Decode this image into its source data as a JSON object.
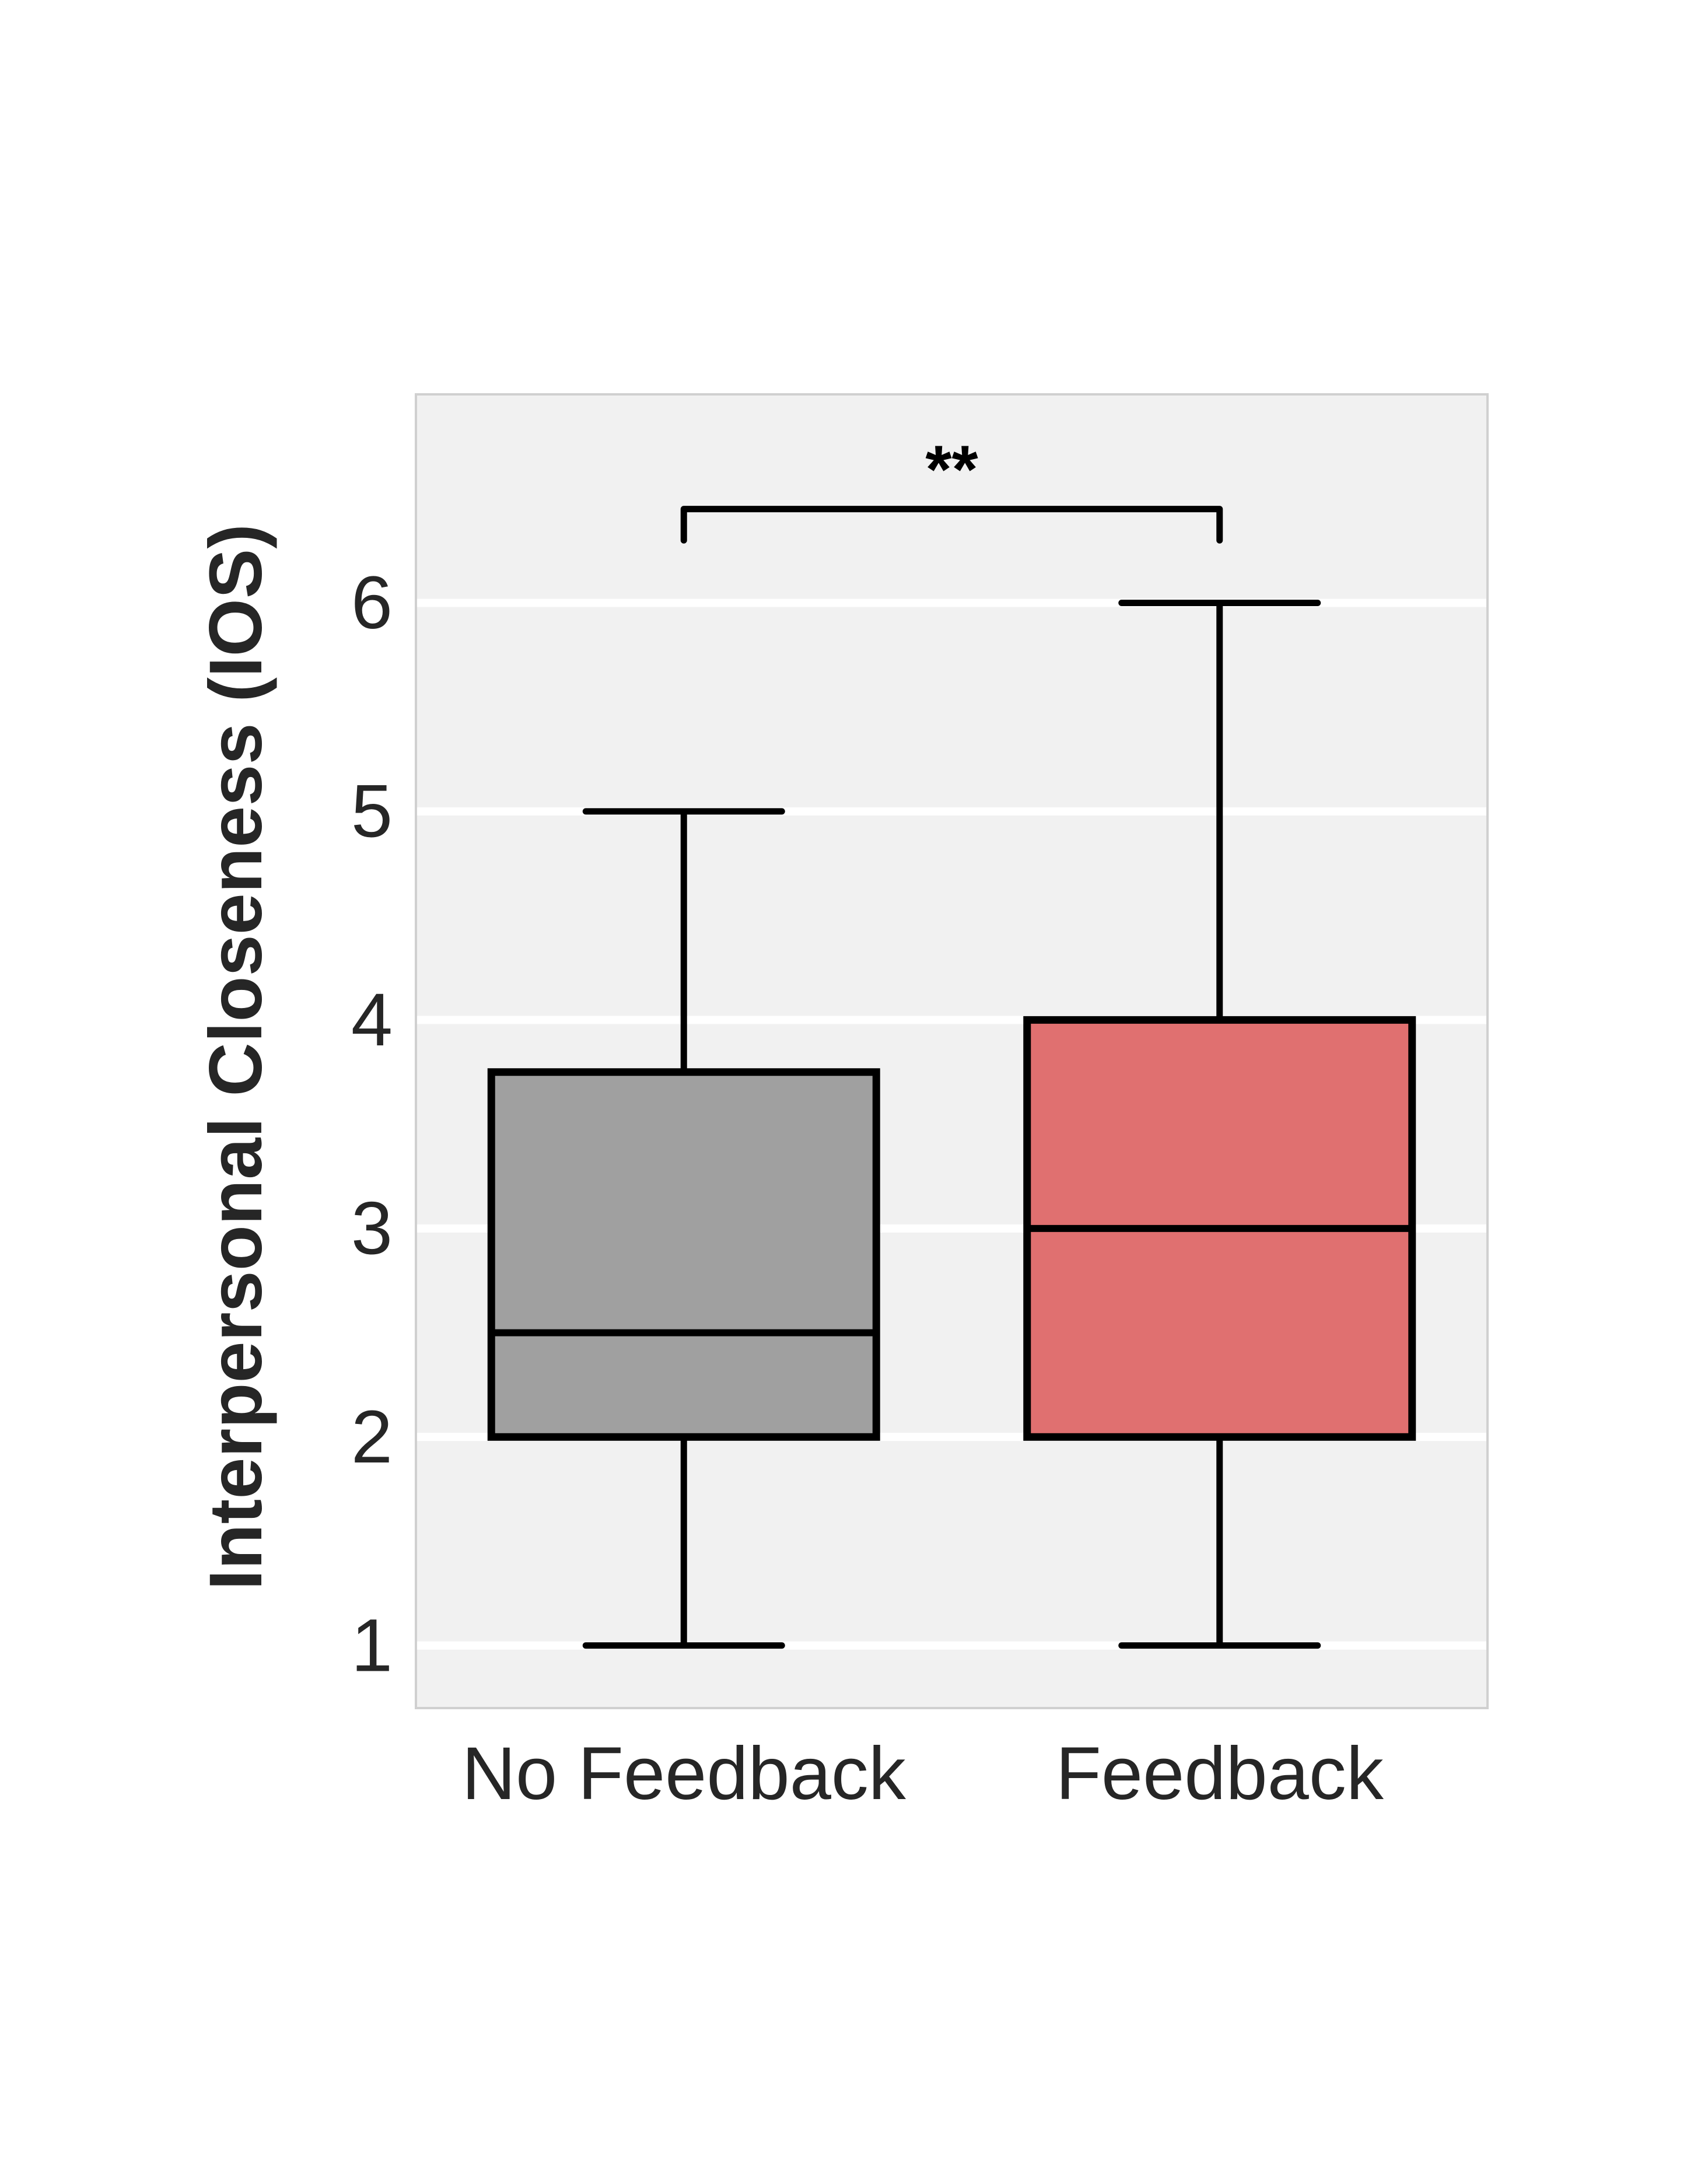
{
  "chart_data": {
    "type": "box",
    "title": "",
    "xlabel": "",
    "ylabel": "Interpersonal Closeness (IOS)",
    "yticks": [
      "1",
      "2",
      "3",
      "4",
      "5",
      "6"
    ],
    "ylim": [
      0.7,
      7.0
    ],
    "grid": "horizontal",
    "categories": [
      "No Feedback",
      "Feedback"
    ],
    "boxes": [
      {
        "name": "No Feedback",
        "whisker_low": 1,
        "q1": 2,
        "median": 2.5,
        "q3": 3.75,
        "whisker_high": 5,
        "color": "#a0a0a0"
      },
      {
        "name": "Feedback",
        "whisker_low": 1,
        "q1": 2,
        "median": 3,
        "q3": 4,
        "whisker_high": 6,
        "color": "#e07070"
      }
    ],
    "annotation": {
      "text": "**",
      "between": [
        "No Feedback",
        "Feedback"
      ],
      "bracket_y": 6.45,
      "bracket_drop": 0.15
    }
  },
  "colors": {
    "plot_background": "#f1f1f1",
    "gridline": "#ffffff",
    "frame": "#d0d0d0",
    "box_edge": "#000000"
  }
}
